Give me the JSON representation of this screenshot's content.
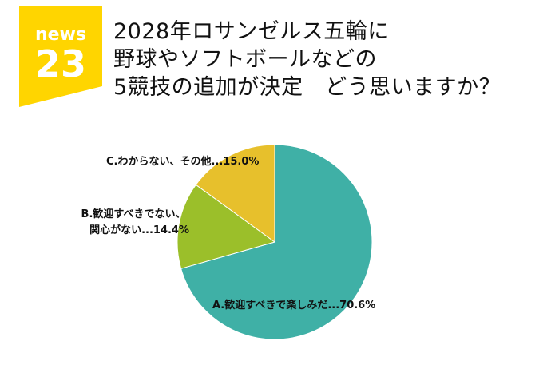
{
  "logo": {
    "top": "news",
    "bottom": "23",
    "bg_color": "#ffd500"
  },
  "title_lines": [
    "2028年ロサンゼルス五輪に",
    "野球やソフトボールなどの",
    "5競技の追加が決定　どう思いますか？"
  ],
  "chart_data": {
    "type": "pie",
    "start_angle_deg": 0,
    "direction": "clockwise",
    "slices": [
      {
        "label": "A.歓迎すべきで楽しみだ...70.6%",
        "value": 70.6,
        "color": "#3fb0a6"
      },
      {
        "label": "B.歓迎すべきでない、関心がない...14.4%",
        "label_lines": [
          "B.歓迎すべきでない、",
          "関心がない...14.4%"
        ],
        "value": 14.4,
        "color": "#9bbf2a"
      },
      {
        "label": "C.わからない、その他...15.0%",
        "value": 15.0,
        "color": "#e7c02c"
      }
    ]
  }
}
